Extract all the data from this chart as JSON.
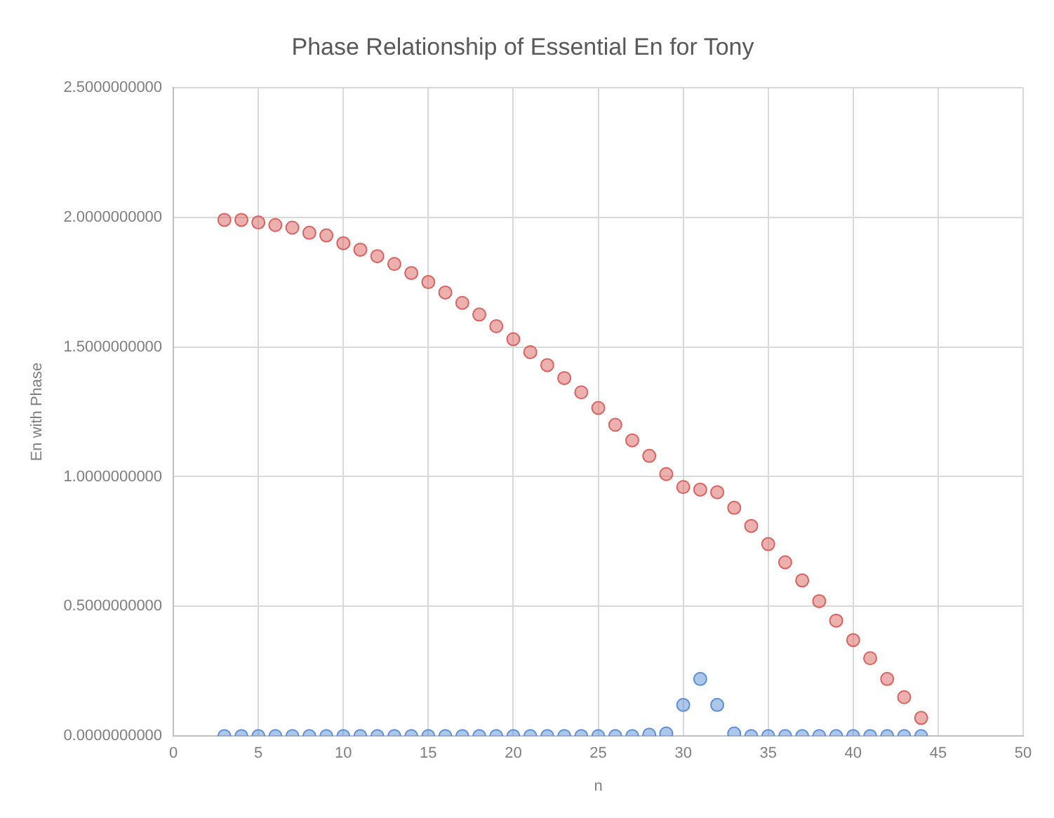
{
  "chart_data": {
    "type": "scatter",
    "title": "Phase Relationship of Essential En for Tony",
    "xlabel": "n",
    "ylabel": "En with Phase",
    "x": [
      3,
      4,
      5,
      6,
      7,
      8,
      9,
      10,
      11,
      12,
      13,
      14,
      15,
      16,
      17,
      18,
      19,
      20,
      21,
      22,
      23,
      24,
      25,
      26,
      27,
      28,
      29,
      30,
      31,
      32,
      33,
      34,
      35,
      36,
      37,
      38,
      39,
      40,
      41,
      42,
      43,
      44
    ],
    "series": [
      {
        "color": "#d9625f",
        "values": [
          1.99,
          1.99,
          1.98,
          1.97,
          1.96,
          1.94,
          1.93,
          1.9,
          1.875,
          1.85,
          1.82,
          1.785,
          1.75,
          1.71,
          1.67,
          1.625,
          1.58,
          1.53,
          1.48,
          1.43,
          1.38,
          1.325,
          1.265,
          1.2,
          1.14,
          1.08,
          1.01,
          0.96,
          0.95,
          0.94,
          0.88,
          0.81,
          0.74,
          0.67,
          0.6,
          0.52,
          0.445,
          0.37,
          0.3,
          0.22,
          0.15,
          0.07
        ]
      },
      {
        "color": "#5b8fd6",
        "values": [
          0,
          0,
          0,
          0,
          0,
          0,
          0,
          0,
          0,
          0,
          0,
          0,
          0,
          0,
          0,
          0,
          0,
          0,
          0,
          0,
          0,
          0,
          0,
          0,
          0,
          0.005,
          0.01,
          0.12,
          0.22,
          0.12,
          0.01,
          0,
          0,
          0,
          0,
          0,
          0,
          0,
          0,
          0,
          0,
          0
        ]
      }
    ],
    "xlim": [
      0,
      50
    ],
    "xticks": [
      0,
      5,
      10,
      15,
      20,
      25,
      30,
      35,
      40,
      45,
      50
    ],
    "ylim": [
      0,
      2.5
    ],
    "yticks": [
      {
        "value": 0,
        "label": "0.0000000000"
      },
      {
        "value": 0.5,
        "label": "0.5000000000"
      },
      {
        "value": 1,
        "label": "1.0000000000"
      },
      {
        "value": 1.5,
        "label": "1.5000000000"
      },
      {
        "value": 2,
        "label": "2.0000000000"
      },
      {
        "value": 2.5,
        "label": "2.5000000000"
      }
    ],
    "grid": true,
    "marker": "circle"
  }
}
